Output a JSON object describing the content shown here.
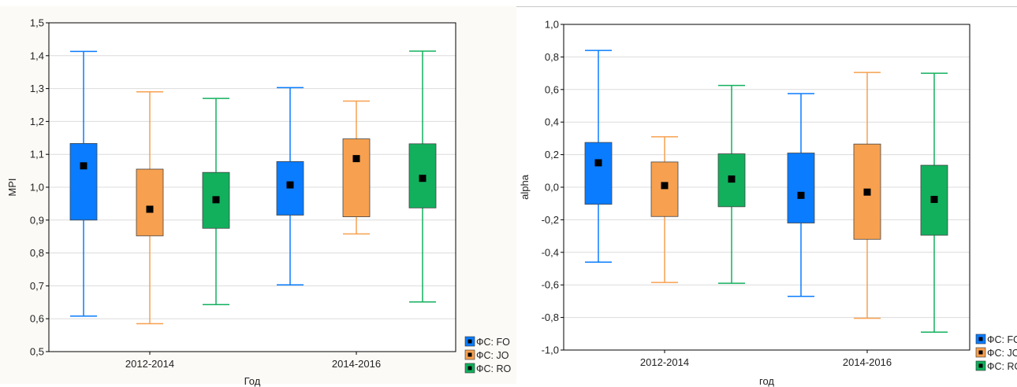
{
  "chart_data": [
    {
      "type": "box",
      "xlabel": "Год",
      "ylabel": "MPI",
      "ylim": [
        0.5,
        1.5
      ],
      "yticks": [
        "0,5",
        "0,6",
        "0,7",
        "0,8",
        "0,9",
        "1,0",
        "1,1",
        "1,2",
        "1,3",
        "1,4",
        "1,5"
      ],
      "categories": [
        "2012-2014",
        "2014-2016"
      ],
      "grid": true,
      "legend_position": "bottom-right",
      "series": [
        {
          "name": "ФС: FO",
          "color": "#0a7cff",
          "mean": [
            1.065,
            1.007
          ],
          "box_low": [
            0.9,
            0.915
          ],
          "box_high": [
            1.133,
            1.078
          ],
          "whisker_low": [
            0.608,
            0.703
          ],
          "whisker_high": [
            1.413,
            1.303
          ]
        },
        {
          "name": "ФС: JO",
          "color": "#f7a04f",
          "mean": [
            0.933,
            1.087
          ],
          "box_low": [
            0.852,
            0.91
          ],
          "box_high": [
            1.055,
            1.147
          ],
          "whisker_low": [
            0.585,
            0.858
          ],
          "whisker_high": [
            1.29,
            1.262
          ]
        },
        {
          "name": "ФС: RO",
          "color": "#12b05d",
          "mean": [
            0.962,
            1.027
          ],
          "box_low": [
            0.875,
            0.937
          ],
          "box_high": [
            1.045,
            1.132
          ],
          "whisker_low": [
            0.643,
            0.651
          ],
          "whisker_high": [
            1.27,
            1.414
          ]
        }
      ]
    },
    {
      "type": "box",
      "xlabel": "год",
      "ylabel": "alpha",
      "ylim": [
        -1.0,
        1.0
      ],
      "yticks": [
        "-1,0",
        "-0,8",
        "-0,6",
        "-0,4",
        "-0,2",
        "0,0",
        "0,2",
        "0,4",
        "0,6",
        "0,8",
        "1,0"
      ],
      "categories": [
        "2012-2014",
        "2014-2016"
      ],
      "grid": true,
      "legend_position": "bottom-right",
      "series": [
        {
          "name": "ФС: FO",
          "color": "#0a7cff",
          "mean": [
            0.15,
            -0.05
          ],
          "box_low": [
            -0.105,
            -0.22
          ],
          "box_high": [
            0.275,
            0.21
          ],
          "whisker_low": [
            -0.46,
            -0.67
          ],
          "whisker_high": [
            0.84,
            0.575
          ]
        },
        {
          "name": "ФС: JO",
          "color": "#f7a04f",
          "mean": [
            0.01,
            -0.03
          ],
          "box_low": [
            -0.18,
            -0.32
          ],
          "box_high": [
            0.155,
            0.265
          ],
          "whisker_low": [
            -0.585,
            -0.805
          ],
          "whisker_high": [
            0.31,
            0.705
          ]
        },
        {
          "name": "ФС: RO",
          "color": "#12b05d",
          "mean": [
            0.05,
            -0.075
          ],
          "box_low": [
            -0.12,
            -0.295
          ],
          "box_high": [
            0.205,
            0.135
          ],
          "whisker_low": [
            -0.59,
            -0.89
          ],
          "whisker_high": [
            0.625,
            0.7
          ]
        }
      ]
    }
  ]
}
